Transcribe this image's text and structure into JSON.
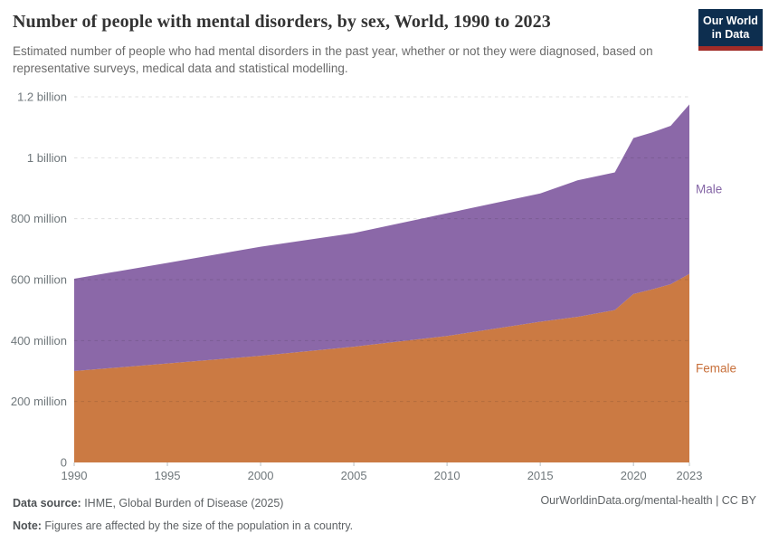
{
  "header": {
    "title": "Number of people with mental disorders, by sex, World, 1990 to 2023",
    "subtitle": "Estimated number of people who had mental disorders in the past year, whether or not they were diagnosed, based on representative surveys, medical data and statistical modelling.",
    "logo": {
      "line1": "Our World",
      "line2": "in Data",
      "bg_color": "#0d2e4f",
      "accent_color": "#a12c28"
    }
  },
  "chart_data": {
    "type": "area",
    "stacked": true,
    "title": "Number of people with mental disorders, by sex, World, 1990 to 2023",
    "xlabel": "",
    "ylabel": "",
    "x_range": [
      1990,
      2023
    ],
    "ylim": [
      0,
      1200
    ],
    "units": "millions of people",
    "grid": "dashed horizontal gridlines",
    "legend_position": "right edge labels",
    "x": [
      1990,
      1995,
      2000,
      2005,
      2010,
      2015,
      2017,
      2019,
      2020,
      2021,
      2022,
      2023
    ],
    "series": [
      {
        "name": "Female",
        "color": "#cb7a43",
        "label_color": "#c8703b",
        "values": [
          300,
          325,
          350,
          380,
          415,
          462,
          478,
          500,
          553,
          568,
          585,
          619
        ]
      },
      {
        "name": "Male",
        "color": "#8b68a8",
        "label_color": "#8566a6",
        "values": [
          303,
          330,
          358,
          373,
          403,
          421,
          448,
          452,
          512,
          515,
          520,
          556
        ]
      }
    ],
    "x_ticks": [
      1990,
      1995,
      2000,
      2005,
      2010,
      2015,
      2020,
      2023
    ],
    "y_ticks": [
      {
        "value": 0,
        "label": "0"
      },
      {
        "value": 200,
        "label": "200 million"
      },
      {
        "value": 400,
        "label": "400 million"
      },
      {
        "value": 600,
        "label": "600 million"
      },
      {
        "value": 800,
        "label": "800 million"
      },
      {
        "value": 1000,
        "label": "1 billion"
      },
      {
        "value": 1200,
        "label": "1.2 billion"
      }
    ],
    "tick_color": "#6f777b",
    "gridline_color": "rgba(30,30,30,0.14)"
  },
  "footer": {
    "source_label": "Data source:",
    "source_text": " IHME, Global Burden of Disease (2025)",
    "note_label": "Note:",
    "note_text": " Figures are affected by the size of the population in a country.",
    "link_text": "OurWorldinData.org/mental-health | CC BY"
  }
}
